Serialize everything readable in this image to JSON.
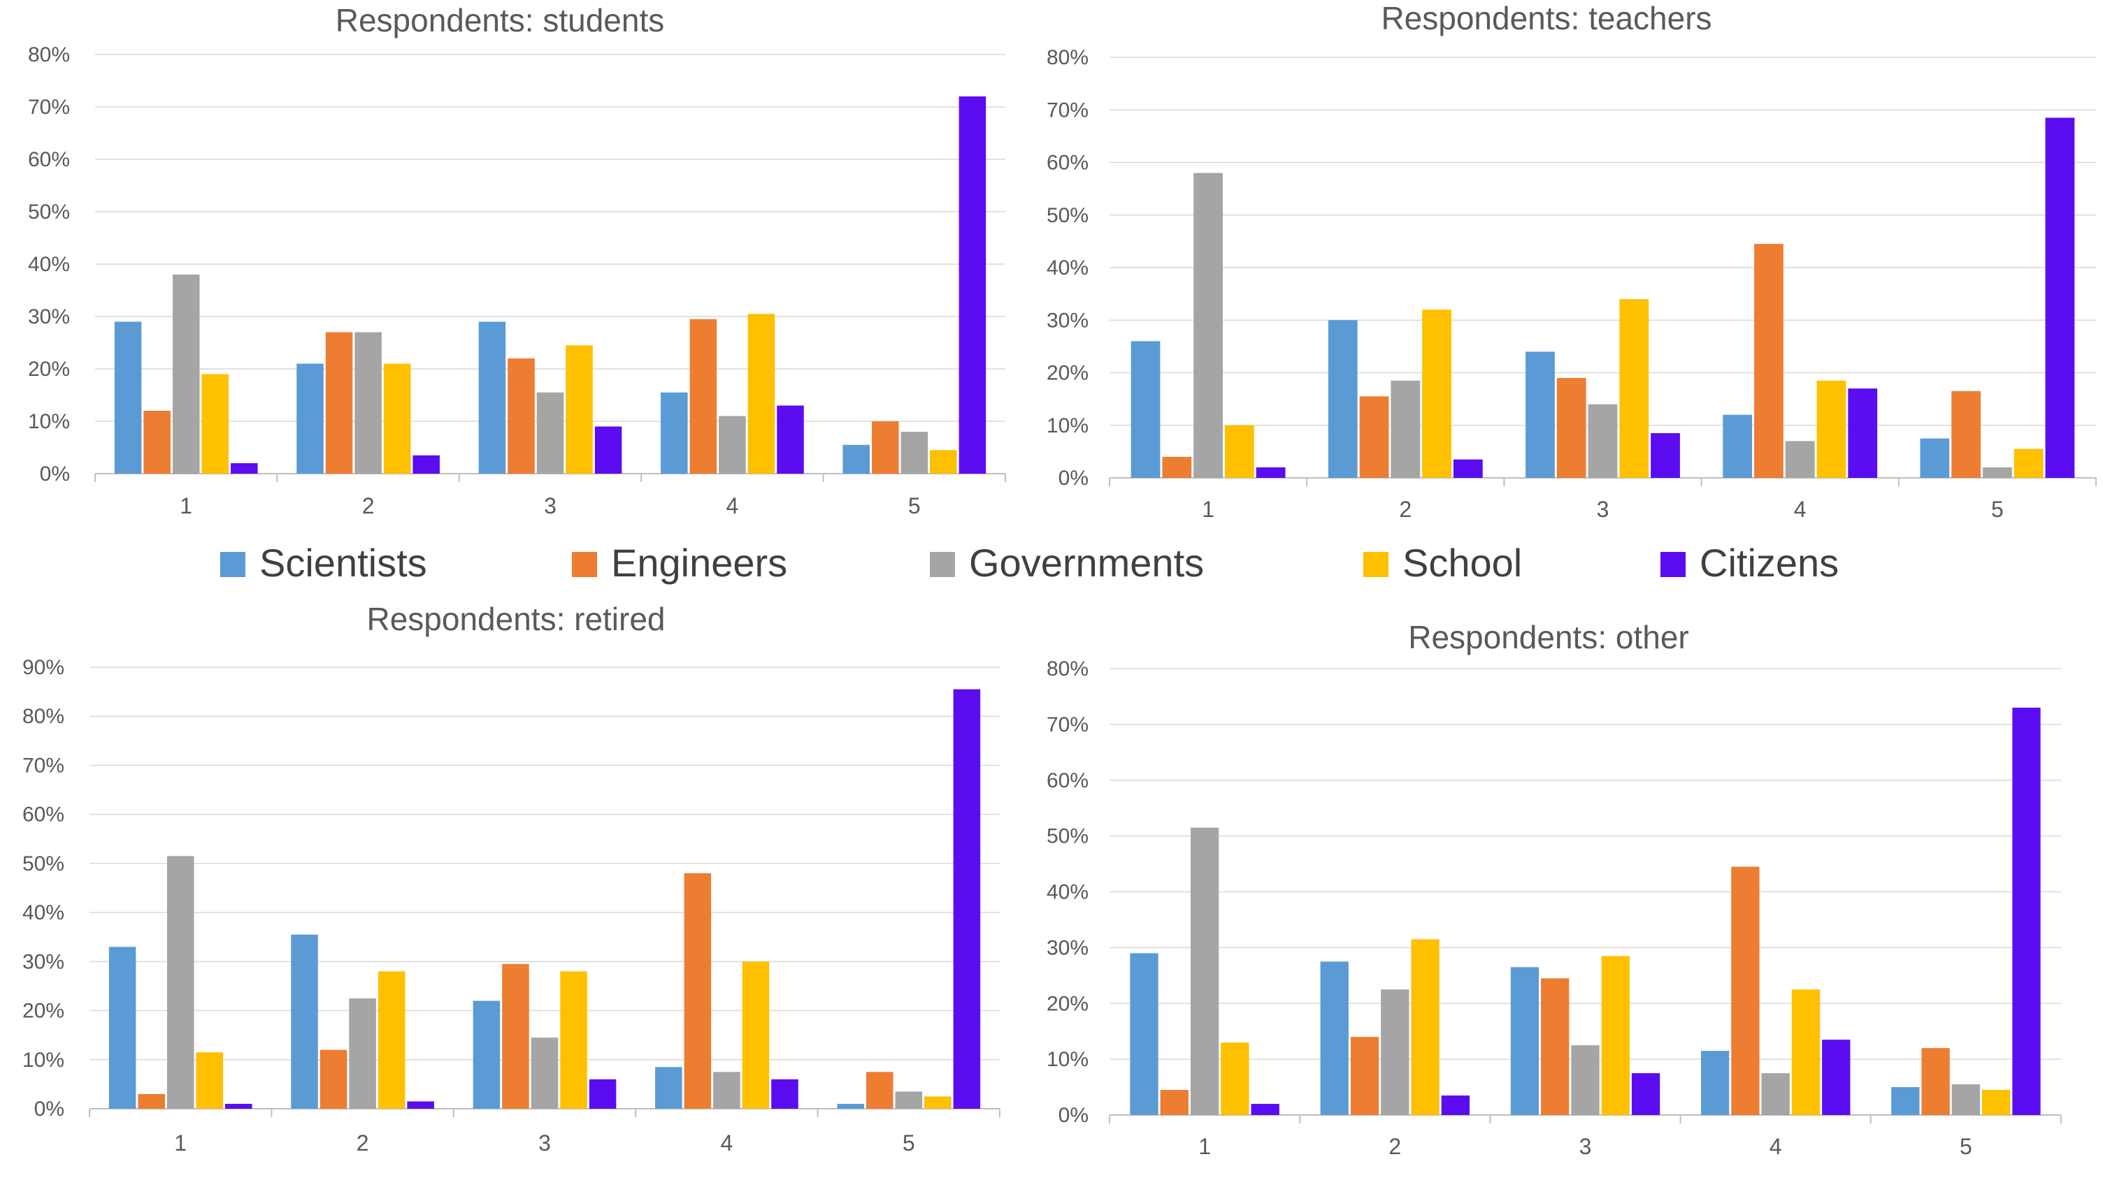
{
  "legend": {
    "items": [
      {
        "label": "Scientists",
        "color": "#5b9bd5"
      },
      {
        "label": "Engineers",
        "color": "#ed7d31"
      },
      {
        "label": "Governments",
        "color": "#a5a5a5"
      },
      {
        "label": "School",
        "color": "#ffc000"
      },
      {
        "label": "Citizens",
        "color": "#5b0cf0"
      }
    ]
  },
  "chart_data": [
    {
      "type": "bar",
      "title": "Respondents: students",
      "categories": [
        "1",
        "2",
        "3",
        "4",
        "5"
      ],
      "ylim": [
        0,
        80
      ],
      "yticks": [
        "0%",
        "10%",
        "20%",
        "30%",
        "40%",
        "50%",
        "60%",
        "70%",
        "80%"
      ],
      "grid": true,
      "series": [
        {
          "name": "Scientists",
          "values": [
            29,
            21,
            29,
            15.5,
            5.5
          ]
        },
        {
          "name": "Engineers",
          "values": [
            12,
            27,
            22,
            29.5,
            10
          ]
        },
        {
          "name": "Governments",
          "values": [
            38,
            27,
            15.5,
            11,
            8
          ]
        },
        {
          "name": "School",
          "values": [
            19,
            21,
            24.5,
            30.5,
            4.5
          ]
        },
        {
          "name": "Citizens",
          "values": [
            2,
            3.5,
            9,
            13,
            72
          ]
        }
      ]
    },
    {
      "type": "bar",
      "title": "Respondents: teachers",
      "categories": [
        "1",
        "2",
        "3",
        "4",
        "5"
      ],
      "ylim": [
        0,
        80
      ],
      "yticks": [
        "0%",
        "10%",
        "20%",
        "30%",
        "40%",
        "50%",
        "60%",
        "70%",
        "80%"
      ],
      "grid": true,
      "series": [
        {
          "name": "Scientists",
          "values": [
            26,
            30,
            24,
            12,
            7.5
          ]
        },
        {
          "name": "Engineers",
          "values": [
            4,
            15.5,
            19,
            44.5,
            16.5
          ]
        },
        {
          "name": "Governments",
          "values": [
            58,
            18.5,
            14,
            7,
            2
          ]
        },
        {
          "name": "School",
          "values": [
            10,
            32,
            34,
            18.5,
            5.5
          ]
        },
        {
          "name": "Citizens",
          "values": [
            2,
            3.5,
            8.5,
            17,
            68.5
          ]
        }
      ]
    },
    {
      "type": "bar",
      "title": "Respondents: retired",
      "categories": [
        "1",
        "2",
        "3",
        "4",
        "5"
      ],
      "ylim": [
        0,
        90
      ],
      "yticks": [
        "0%",
        "10%",
        "20%",
        "30%",
        "40%",
        "50%",
        "60%",
        "70%",
        "80%",
        "90%"
      ],
      "grid": true,
      "series": [
        {
          "name": "Scientists",
          "values": [
            33,
            35.5,
            22,
            8.5,
            1
          ]
        },
        {
          "name": "Engineers",
          "values": [
            3,
            12,
            29.5,
            48,
            7.5
          ]
        },
        {
          "name": "Governments",
          "values": [
            51.5,
            22.5,
            14.5,
            7.5,
            3.5
          ]
        },
        {
          "name": "School",
          "values": [
            11.5,
            28,
            28,
            30,
            2.5
          ]
        },
        {
          "name": "Citizens",
          "values": [
            1,
            1.5,
            6,
            6,
            85.5
          ]
        }
      ]
    },
    {
      "type": "bar",
      "title": "Respondents: other",
      "categories": [
        "1",
        "2",
        "3",
        "4",
        "5"
      ],
      "ylim": [
        0,
        80
      ],
      "yticks": [
        "0%",
        "10%",
        "20%",
        "30%",
        "40%",
        "50%",
        "60%",
        "70%",
        "80%"
      ],
      "grid": true,
      "series": [
        {
          "name": "Scientists",
          "values": [
            29,
            27.5,
            26.5,
            11.5,
            5
          ]
        },
        {
          "name": "Engineers",
          "values": [
            4.5,
            14,
            24.5,
            44.5,
            12
          ]
        },
        {
          "name": "Governments",
          "values": [
            51.5,
            22.5,
            12.5,
            7.5,
            5.5
          ]
        },
        {
          "name": "School",
          "values": [
            13,
            31.5,
            28.5,
            22.5,
            4.5
          ]
        },
        {
          "name": "Citizens",
          "values": [
            2,
            3.5,
            7.5,
            13.5,
            73
          ]
        }
      ]
    }
  ]
}
